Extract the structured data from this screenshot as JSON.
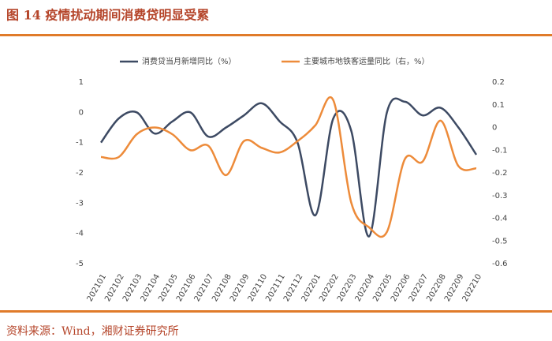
{
  "chart_data": {
    "type": "line",
    "title": "图 14 疫情扰动期间消费贷明显受累",
    "source": "资料来源：Wind，湘财证券研究所",
    "categories": [
      "202101",
      "202102",
      "202103",
      "202104",
      "202105",
      "202106",
      "202107",
      "202108",
      "202109",
      "202110",
      "202111",
      "202112",
      "202201",
      "202202",
      "202203",
      "202204",
      "202205",
      "202206",
      "202207",
      "202208",
      "202209",
      "202210"
    ],
    "series": [
      {
        "name": "消费贷当月新增同比（%）",
        "color": "#3d4a63",
        "values": [
          -1.0,
          -0.2,
          0.0,
          -0.7,
          -0.3,
          0.0,
          -0.8,
          -0.5,
          -0.1,
          0.3,
          -0.3,
          -1.0,
          -3.4,
          -0.2,
          -0.6,
          -4.1,
          0.0,
          0.35,
          -0.1,
          0.15,
          -0.5,
          -1.4
        ]
      },
      {
        "name": "主要城市地铁客运量同比（右，%）",
        "color": "#ed8b3a",
        "axis": "y2",
        "values": [
          -0.13,
          -0.13,
          -0.03,
          0.0,
          -0.03,
          -0.1,
          -0.08,
          -0.21,
          -0.06,
          -0.09,
          -0.11,
          -0.06,
          0.01,
          0.12,
          -0.33,
          -0.44,
          -0.46,
          -0.14,
          -0.15,
          0.03,
          -0.17,
          -0.18
        ]
      }
    ],
    "ylim": [
      -5,
      1
    ],
    "yticks": [
      1,
      0,
      -1,
      -2,
      -3,
      -4,
      -5
    ],
    "y2lim": [
      -0.6,
      0.2
    ],
    "y2ticks": [
      0.2,
      0.1,
      0,
      -0.1,
      -0.2,
      -0.3,
      -0.4,
      -0.5,
      -0.6
    ],
    "legend": "top"
  }
}
